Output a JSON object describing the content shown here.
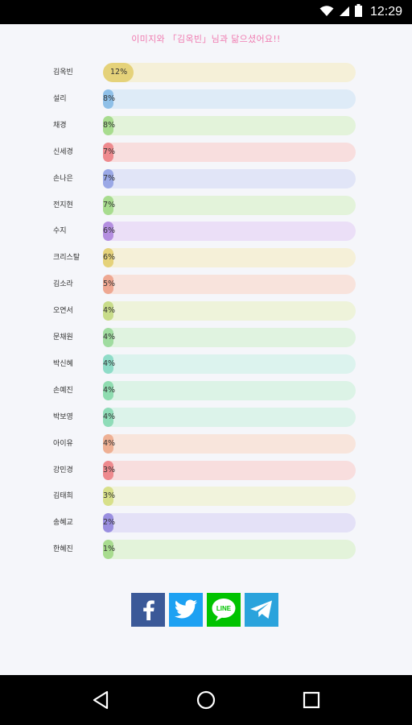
{
  "status_bar": {
    "time": "12:29",
    "icons": [
      "wifi-icon",
      "signal-icon",
      "battery-icon"
    ]
  },
  "headline": "이미지와 「김옥빈」님과 닮으셨어요!!",
  "ranking": [
    {
      "name": "김옥빈",
      "percent": "12%",
      "value": 12,
      "color": "#e5d27a",
      "track": "#f5f0d8"
    },
    {
      "name": "설리",
      "percent": "8%",
      "value": 8,
      "color": "#8fc0e8",
      "track": "#deebf7"
    },
    {
      "name": "채경",
      "percent": "8%",
      "value": 8,
      "color": "#a8dc8f",
      "track": "#e3f3da"
    },
    {
      "name": "신세경",
      "percent": "7%",
      "value": 7,
      "color": "#ee8a8e",
      "track": "#f8dede"
    },
    {
      "name": "손나은",
      "percent": "7%",
      "value": 7,
      "color": "#9aa8e6",
      "track": "#e1e5f7"
    },
    {
      "name": "전지현",
      "percent": "7%",
      "value": 7,
      "color": "#a8dc8f",
      "track": "#e3f3da"
    },
    {
      "name": "수지",
      "percent": "6%",
      "value": 6,
      "color": "#b48fe0",
      "track": "#ebdff7"
    },
    {
      "name": "크리스탈",
      "percent": "6%",
      "value": 6,
      "color": "#e5d27a",
      "track": "#f5f0d8"
    },
    {
      "name": "김소라",
      "percent": "5%",
      "value": 5,
      "color": "#eea892",
      "track": "#f8e3dc"
    },
    {
      "name": "오연서",
      "percent": "4%",
      "value": 4,
      "color": "#c8dc8a",
      "track": "#eef3da"
    },
    {
      "name": "문채원",
      "percent": "4%",
      "value": 4,
      "color": "#a0dca0",
      "track": "#e0f3e0"
    },
    {
      "name": "박신혜",
      "percent": "4%",
      "value": 4,
      "color": "#8fdcc8",
      "track": "#dcf3ee"
    },
    {
      "name": "손예진",
      "percent": "4%",
      "value": 4,
      "color": "#8fdcb0",
      "track": "#dcf3e6"
    },
    {
      "name": "박보영",
      "percent": "4%",
      "value": 4,
      "color": "#8fdcb8",
      "track": "#dcf3ea"
    },
    {
      "name": "아이유",
      "percent": "4%",
      "value": 4,
      "color": "#eeb094",
      "track": "#f8e5dc"
    },
    {
      "name": "강민경",
      "percent": "3%",
      "value": 3,
      "color": "#ee8a8e",
      "track": "#f8dede"
    },
    {
      "name": "김태희",
      "percent": "3%",
      "value": 3,
      "color": "#d8e08a",
      "track": "#f1f3dc"
    },
    {
      "name": "송혜교",
      "percent": "2%",
      "value": 2,
      "color": "#9a8fe0",
      "track": "#e4e1f7"
    },
    {
      "name": "한혜진",
      "percent": "1%",
      "value": 1,
      "color": "#a8dc8f",
      "track": "#e3f3da"
    }
  ],
  "share": {
    "line_label": "LINE",
    "buttons": [
      {
        "icon": "facebook-icon",
        "color": "#3b5998"
      },
      {
        "icon": "twitter-icon",
        "color": "#1da1f2"
      },
      {
        "icon": "line-icon",
        "color": "#00c300"
      },
      {
        "icon": "telegram-icon",
        "color": "#2aa3dc"
      }
    ]
  },
  "nav_bar": {
    "icons": [
      "back-icon",
      "home-icon",
      "recents-icon"
    ]
  }
}
